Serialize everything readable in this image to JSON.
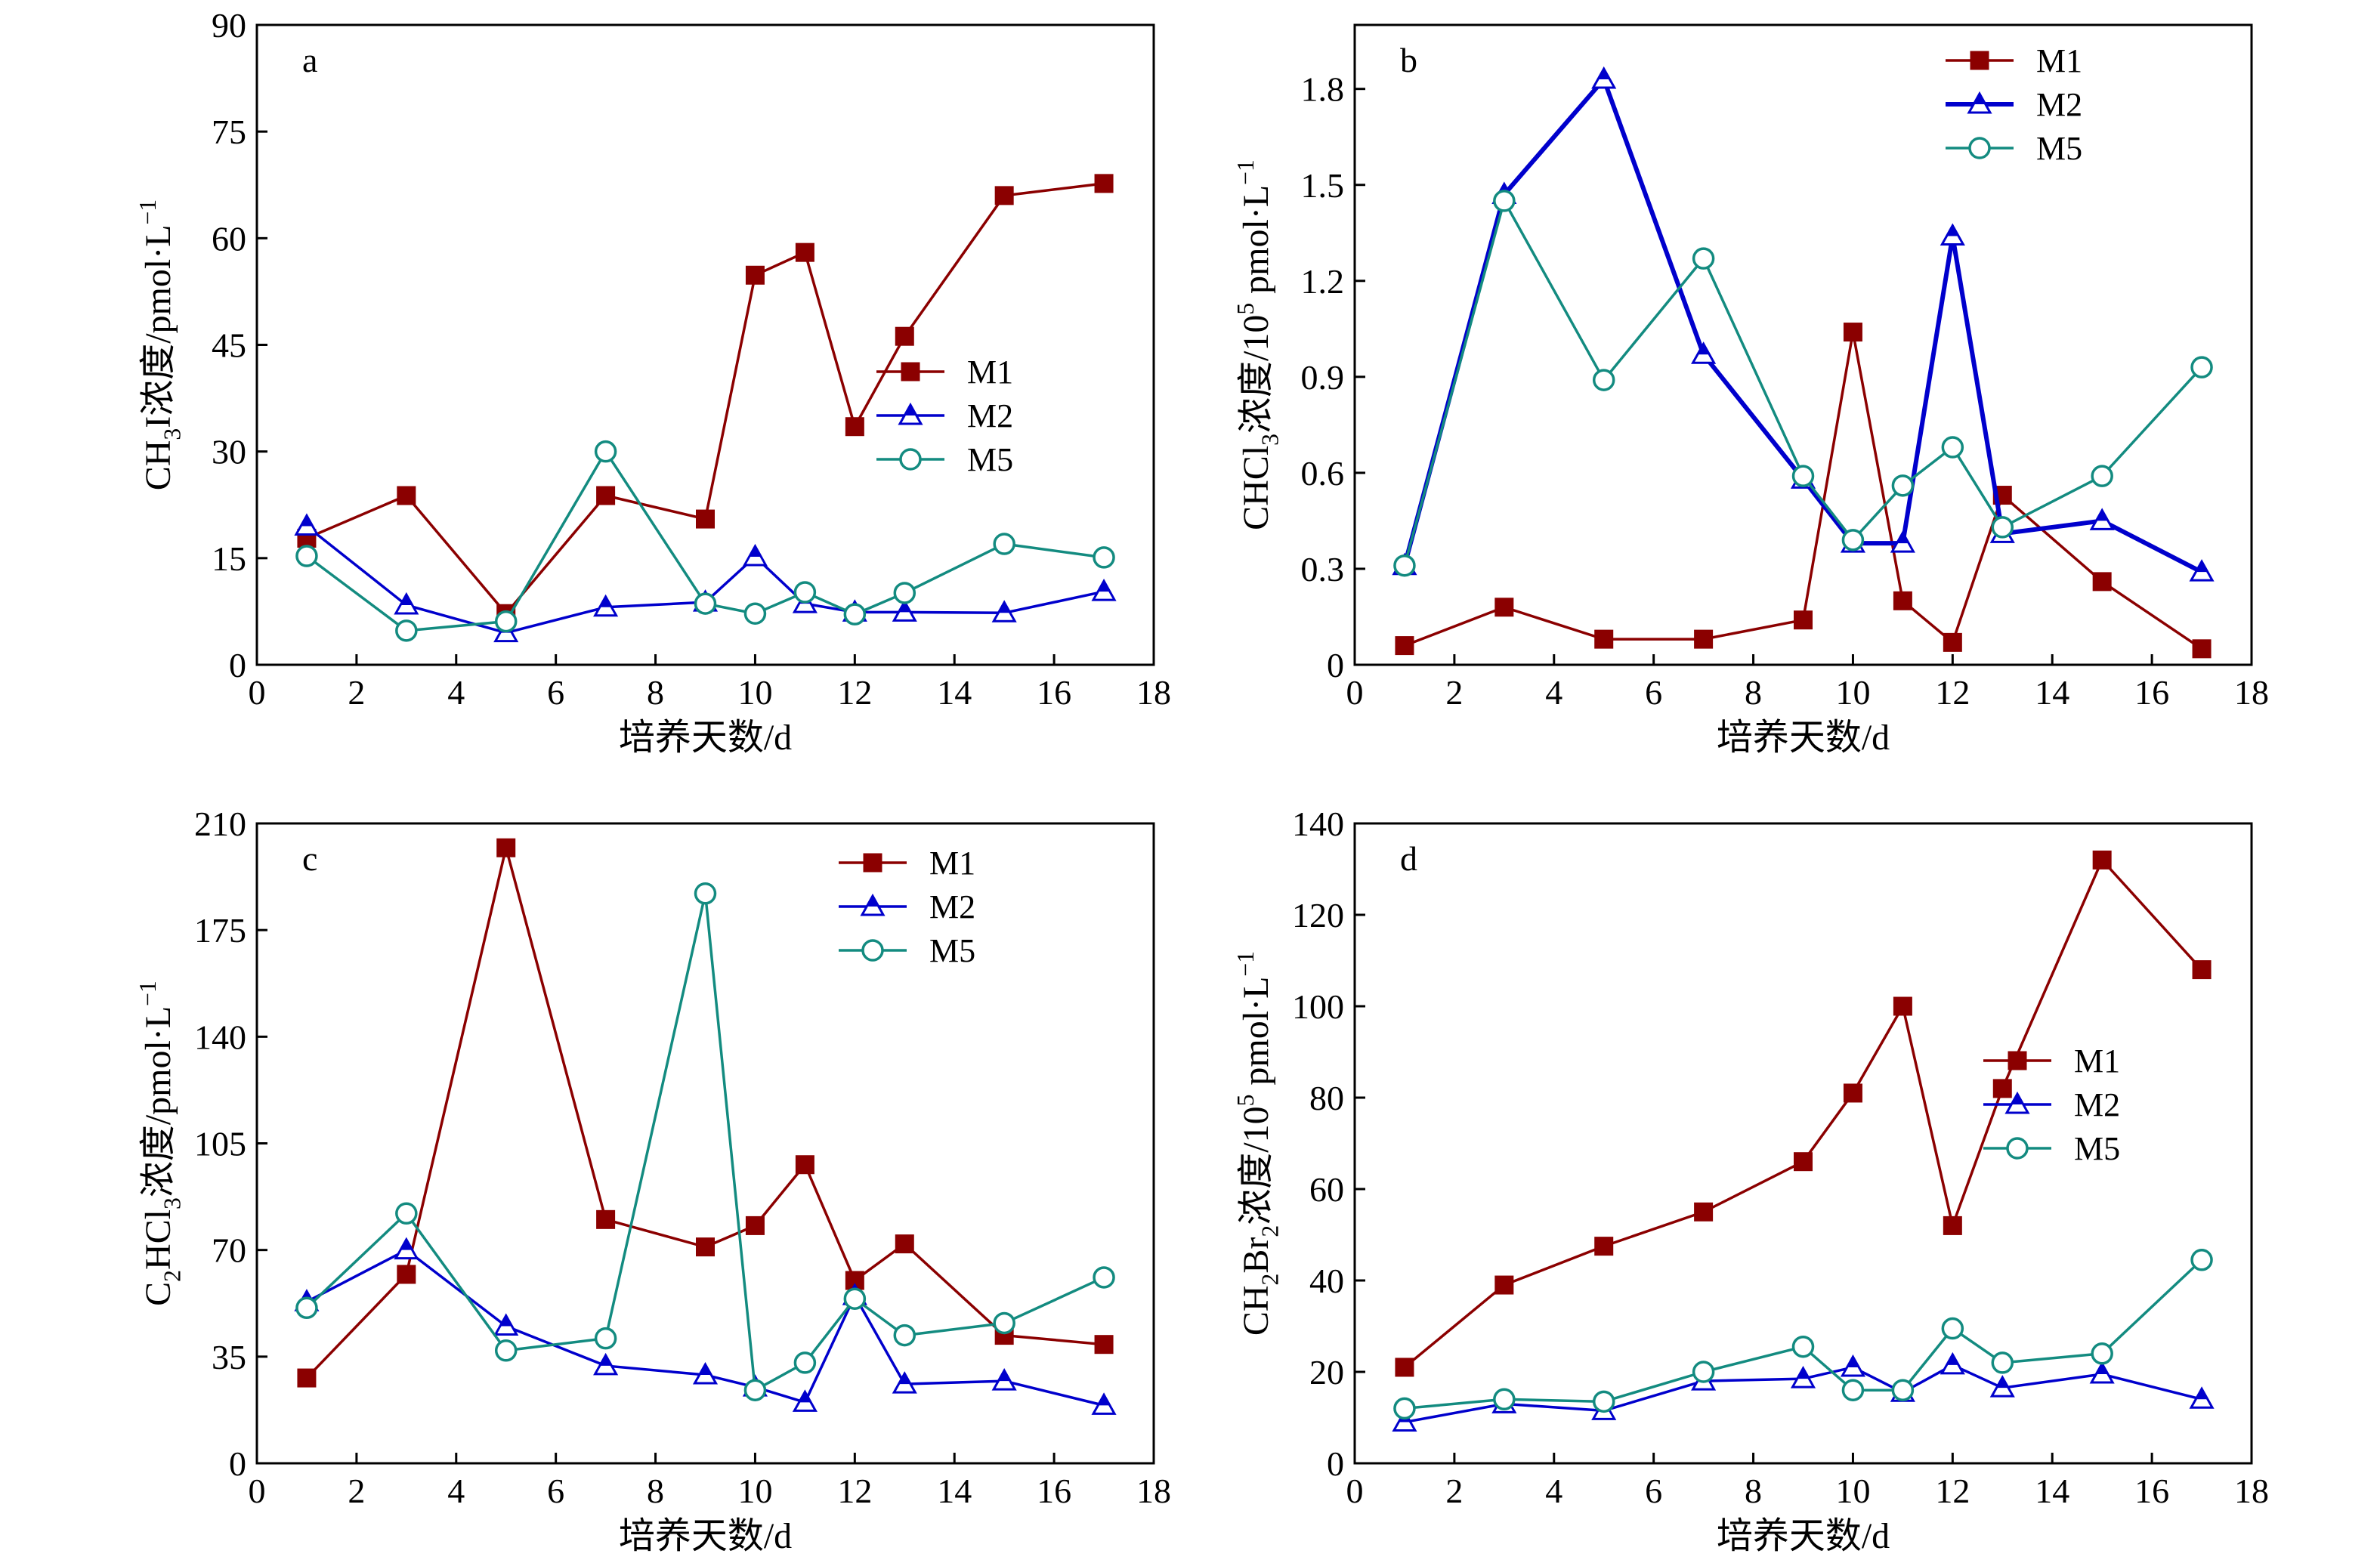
{
  "x_axis_label": "培养天数/d",
  "colors": {
    "M1": "#8b0000",
    "M2": "#0000cc",
    "M5": "#138b80"
  },
  "chart_data": [
    {
      "panel": "a",
      "type": "line",
      "ylabel": "CH₃I浓度/pmol·L⁻¹",
      "xlim": [
        0,
        18
      ],
      "ylim": [
        0,
        90
      ],
      "xticks": [
        0,
        2,
        4,
        6,
        8,
        10,
        12,
        14,
        16,
        18
      ],
      "yticks": [
        0,
        15,
        30,
        45,
        60,
        75,
        90
      ],
      "legend_position": "middle-right",
      "grid": false,
      "series": [
        {
          "name": "M1",
          "x": [
            1,
            3,
            5,
            7,
            9,
            10,
            11,
            12,
            13,
            15,
            17
          ],
          "y": [
            17.8,
            23.8,
            7.2,
            23.8,
            20.5,
            54.8,
            58.0,
            33.5,
            46.2,
            66.0,
            67.7
          ]
        },
        {
          "name": "M2",
          "x": [
            1,
            3,
            5,
            7,
            9,
            10,
            11,
            12,
            13,
            15,
            17
          ],
          "y": [
            19.5,
            8.4,
            4.5,
            8.1,
            8.8,
            15.2,
            8.6,
            7.4,
            7.4,
            7.3,
            10.3
          ]
        },
        {
          "name": "M5",
          "x": [
            1,
            3,
            5,
            7,
            9,
            10,
            11,
            12,
            13,
            15,
            17
          ],
          "y": [
            15.3,
            4.8,
            6.1,
            30.0,
            8.6,
            7.2,
            10.2,
            7.1,
            10.1,
            17.0,
            15.1
          ]
        }
      ]
    },
    {
      "panel": "b",
      "type": "line",
      "ylabel": "CHCl₃浓度/10⁵ pmol·L⁻¹",
      "xlim": [
        0,
        18
      ],
      "ylim": [
        0,
        2.0
      ],
      "xticks": [
        0,
        2,
        4,
        6,
        8,
        10,
        12,
        14,
        16,
        18
      ],
      "yticks": [
        0,
        0.3,
        0.6,
        0.9,
        1.2,
        1.5,
        1.8
      ],
      "ytick_labels": [
        "0",
        "0.3",
        "0.6",
        "0.9",
        "1.2",
        "1.5",
        "1.8"
      ],
      "legend_position": "top-right",
      "grid": false,
      "series": [
        {
          "name": "M1",
          "x": [
            1,
            3,
            5,
            7,
            9,
            10,
            11,
            12,
            13,
            15,
            17
          ],
          "y": [
            0.06,
            0.18,
            0.08,
            0.08,
            0.14,
            1.04,
            0.2,
            0.07,
            0.53,
            0.26,
            0.05
          ]
        },
        {
          "name": "M2",
          "x": [
            1,
            3,
            5,
            7,
            9,
            10,
            11,
            12,
            13,
            15,
            17
          ],
          "y": [
            0.31,
            1.47,
            1.83,
            0.97,
            0.58,
            0.38,
            0.38,
            1.34,
            0.41,
            0.45,
            0.29
          ]
        },
        {
          "name": "M5",
          "x": [
            1,
            3,
            5,
            7,
            9,
            10,
            11,
            12,
            13,
            15,
            17
          ],
          "y": [
            0.31,
            1.45,
            0.89,
            1.27,
            0.59,
            0.39,
            0.56,
            0.68,
            0.43,
            0.59,
            0.93
          ]
        }
      ]
    },
    {
      "panel": "c",
      "type": "line",
      "ylabel": "C₂HCl₃浓度/pmol·L⁻¹",
      "xlim": [
        0,
        18
      ],
      "ylim": [
        0,
        210
      ],
      "xticks": [
        0,
        2,
        4,
        6,
        8,
        10,
        12,
        14,
        16,
        18
      ],
      "yticks": [
        0,
        35,
        70,
        105,
        140,
        175,
        210
      ],
      "legend_position": "top-right",
      "grid": false,
      "series": [
        {
          "name": "M1",
          "x": [
            1,
            3,
            5,
            7,
            9,
            10,
            11,
            12,
            13,
            15,
            17
          ],
          "y": [
            28,
            62,
            202,
            80,
            71,
            78,
            98,
            60,
            72,
            42,
            39
          ]
        },
        {
          "name": "M2",
          "x": [
            1,
            3,
            5,
            7,
            9,
            10,
            11,
            12,
            13,
            15,
            17
          ],
          "y": [
            53,
            70,
            45,
            32,
            29,
            25,
            20,
            55,
            26,
            27,
            19
          ]
        },
        {
          "name": "M5",
          "x": [
            1,
            3,
            5,
            7,
            9,
            10,
            11,
            12,
            13,
            15,
            17
          ],
          "y": [
            51,
            82,
            37,
            41,
            187,
            24,
            33,
            54,
            42,
            46,
            61
          ]
        }
      ]
    },
    {
      "panel": "d",
      "type": "line",
      "ylabel": "CH₂Br₂浓度/10⁵ pmol·L⁻¹",
      "xlim": [
        0,
        18
      ],
      "ylim": [
        0,
        140
      ],
      "xticks": [
        0,
        2,
        4,
        6,
        8,
        10,
        12,
        14,
        16,
        18
      ],
      "yticks": [
        0,
        20,
        40,
        60,
        80,
        100,
        120,
        140
      ],
      "legend_position": "middle-right",
      "grid": false,
      "series": [
        {
          "name": "M1",
          "x": [
            1,
            3,
            5,
            7,
            9,
            10,
            11,
            12,
            13,
            15,
            17
          ],
          "y": [
            21,
            39,
            47.5,
            55,
            66,
            81,
            100,
            52,
            82,
            132,
            108
          ]
        },
        {
          "name": "M2",
          "x": [
            1,
            3,
            5,
            7,
            9,
            10,
            11,
            12,
            13,
            15,
            17
          ],
          "y": [
            9,
            13,
            11.5,
            18,
            18.5,
            21,
            15.5,
            21.5,
            16.5,
            19.5,
            14
          ]
        },
        {
          "name": "M5",
          "x": [
            1,
            3,
            5,
            7,
            9,
            10,
            11,
            12,
            13,
            15,
            17
          ],
          "y": [
            12,
            14,
            13.5,
            20,
            25.5,
            16,
            16,
            29.5,
            22,
            24,
            44.5
          ]
        }
      ]
    }
  ]
}
